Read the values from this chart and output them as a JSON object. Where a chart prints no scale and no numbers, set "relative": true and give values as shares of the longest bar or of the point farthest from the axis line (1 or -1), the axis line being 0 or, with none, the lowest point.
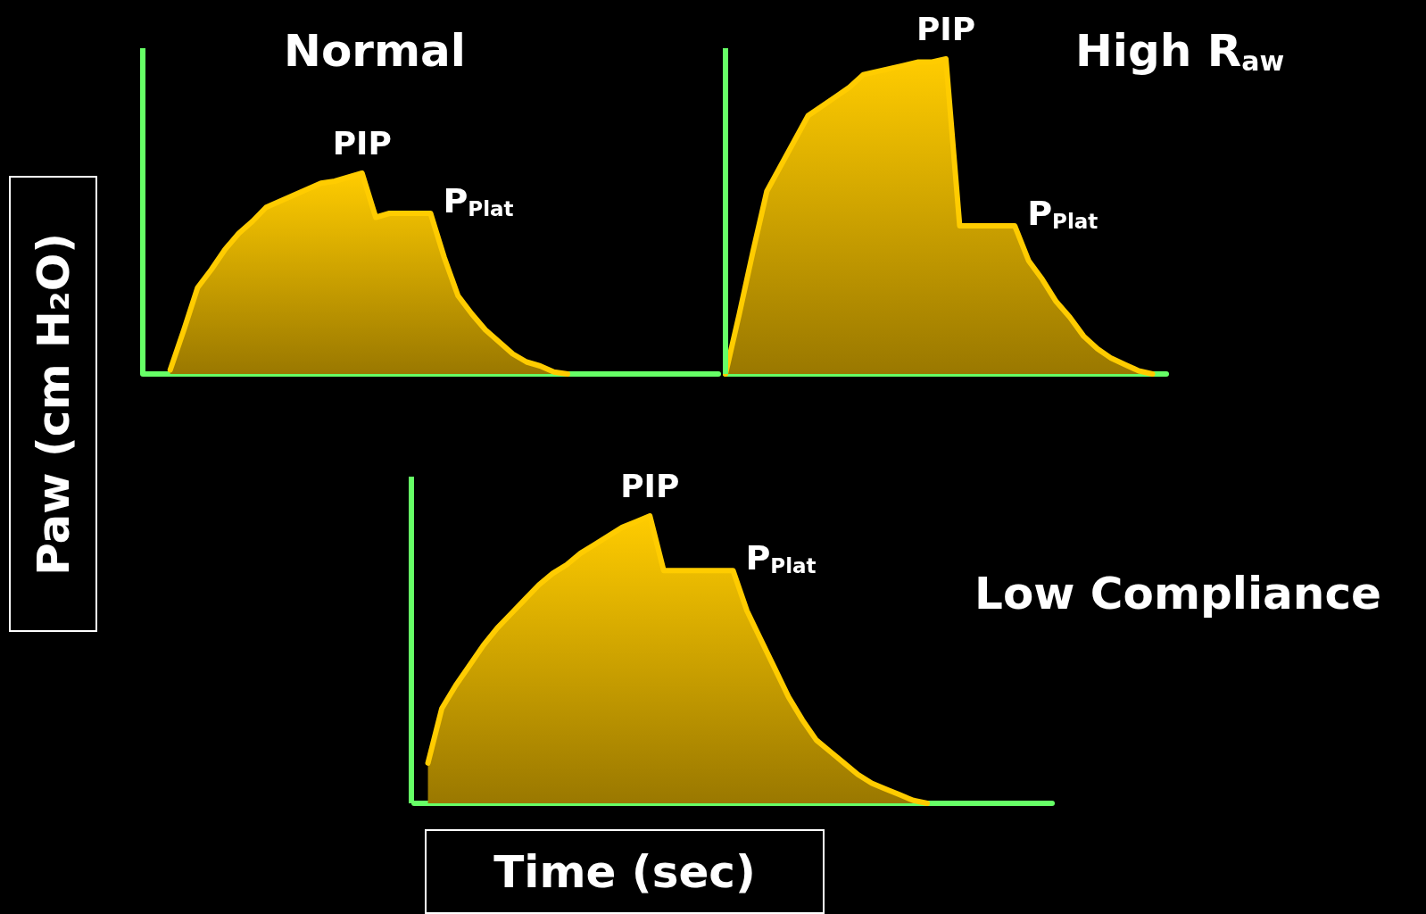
{
  "chart_data": [
    {
      "type": "area",
      "title": "Normal",
      "ylabel": "Paw  (cm H₂O)",
      "relative": true,
      "color": "#ffcc00",
      "annotations": [
        "PIP",
        "P$_{Plat}$"
      ],
      "categories": [
        null,
        null,
        null,
        null,
        null,
        null,
        null,
        null,
        null,
        null,
        null,
        null,
        null,
        null,
        null,
        null,
        null,
        null,
        null,
        null,
        null,
        null,
        null,
        null,
        null,
        null,
        null,
        null,
        null,
        null,
        null,
        null,
        null,
        null,
        null,
        null,
        null,
        null,
        null,
        null,
        null,
        null,
        null
      ],
      "values": [
        null,
        null,
        0.02,
        0.22,
        0.43,
        0.52,
        0.62,
        0.7,
        0.76,
        0.83,
        0.86,
        0.89,
        0.92,
        0.95,
        0.96,
        0.98,
        1,
        0.78,
        0.8,
        0.8,
        0.8,
        0.8,
        0.58,
        0.39,
        0.3,
        0.22,
        0.16,
        0.1,
        0.06,
        0.04,
        0.01,
        0,
        null,
        null,
        null,
        null,
        null,
        null,
        null,
        null,
        null,
        null,
        null
      ]
    },
    {
      "type": "area",
      "title": "High R$_{aw}$",
      "relative": true,
      "color": "#ffcc00",
      "annotations": [
        "PIP",
        "P$_{Plat}$"
      ],
      "categories": [
        null,
        null,
        null,
        null,
        null,
        null,
        null,
        null,
        null,
        null,
        null,
        null,
        null,
        null,
        null,
        null,
        null,
        null,
        null,
        null,
        null,
        null,
        null,
        null,
        null,
        null,
        null,
        null,
        null,
        null,
        null,
        null,
        null
      ],
      "values": [
        0,
        0.19,
        0.39,
        0.58,
        0.66,
        0.74,
        0.82,
        0.85,
        0.88,
        0.91,
        0.95,
        0.96,
        0.97,
        0.98,
        0.99,
        0.99,
        1,
        0.47,
        0.47,
        0.47,
        0.47,
        0.47,
        0.36,
        0.3,
        0.23,
        0.18,
        0.12,
        0.08,
        0.05,
        0.03,
        0.01,
        0,
        null
      ]
    },
    {
      "type": "area",
      "title": "Low Compliance",
      "xlabel": "Time (sec)",
      "relative": true,
      "color": "#ffcc00",
      "annotations": [
        "PIP",
        "P$_{Plat}$"
      ],
      "categories": [
        null,
        null,
        null,
        null,
        null,
        null,
        null,
        null,
        null,
        null,
        null,
        null,
        null,
        null,
        null,
        null,
        null,
        null,
        null,
        null,
        null,
        null,
        null,
        null,
        null,
        null,
        null,
        null,
        null,
        null,
        null,
        null,
        null,
        null,
        null,
        null,
        null,
        null,
        null,
        null,
        null,
        null,
        null,
        null,
        null,
        null,
        null
      ],
      "values": [
        null,
        0.14,
        0.33,
        0.41,
        0.48,
        0.55,
        0.61,
        0.66,
        0.71,
        0.76,
        0.8,
        0.83,
        0.87,
        0.9,
        0.93,
        0.96,
        0.98,
        1,
        0.81,
        0.81,
        0.81,
        0.81,
        0.81,
        0.81,
        0.67,
        0.57,
        0.47,
        0.37,
        0.29,
        0.22,
        0.18,
        0.14,
        0.1,
        0.07,
        0.05,
        0.03,
        0.01,
        0,
        null,
        null,
        null,
        null,
        null,
        null,
        null,
        null,
        null
      ]
    }
  ]
}
